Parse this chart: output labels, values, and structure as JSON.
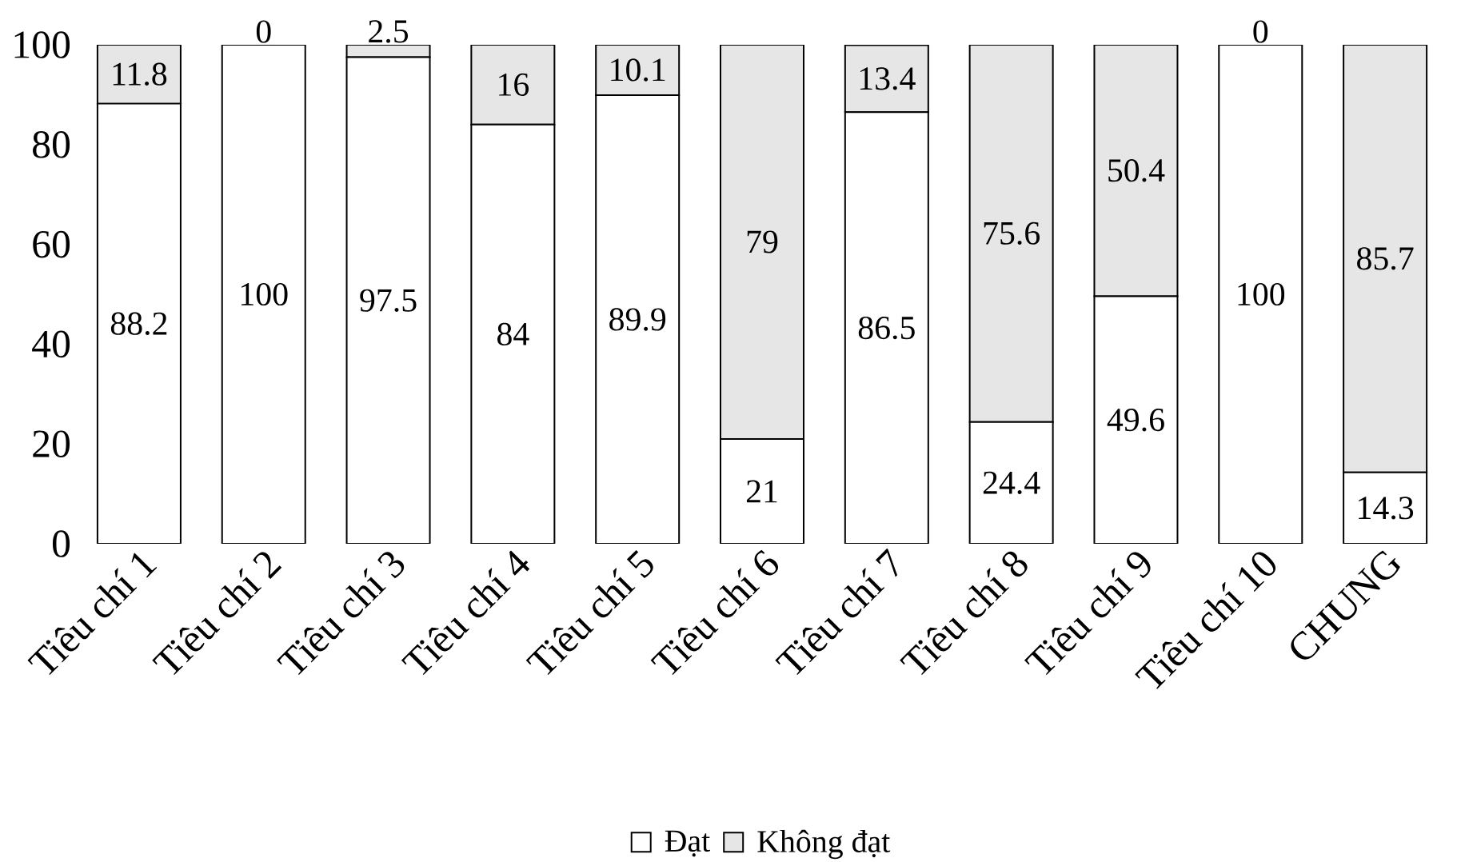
{
  "chart_data": {
    "type": "bar",
    "stacked": true,
    "categories": [
      "Tiêu chí 1",
      "Tiêu chí 2",
      "Tiêu chí 3",
      "Tiêu chí 4",
      "Tiêu chí 5",
      "Tiêu chí 6",
      "Tiêu chí 7",
      "Tiêu chí 8",
      "Tiêu chí 9",
      "Tiêu chí 10",
      "CHUNG"
    ],
    "series": [
      {
        "name": "Đạt",
        "color": "#ffffff",
        "values": [
          88.2,
          100,
          97.5,
          84,
          89.9,
          21,
          86.5,
          24.4,
          49.6,
          100,
          14.3
        ]
      },
      {
        "name": "Không đạt",
        "color": "#e6e6e6",
        "values": [
          11.8,
          0,
          2.5,
          16,
          10.1,
          79,
          13.4,
          75.6,
          50.4,
          0,
          85.7
        ]
      }
    ],
    "ylim": [
      0,
      100
    ],
    "yticks": [
      0,
      20,
      40,
      60,
      80,
      100
    ],
    "grid": false,
    "legend": "bottom",
    "data_labels": true
  }
}
